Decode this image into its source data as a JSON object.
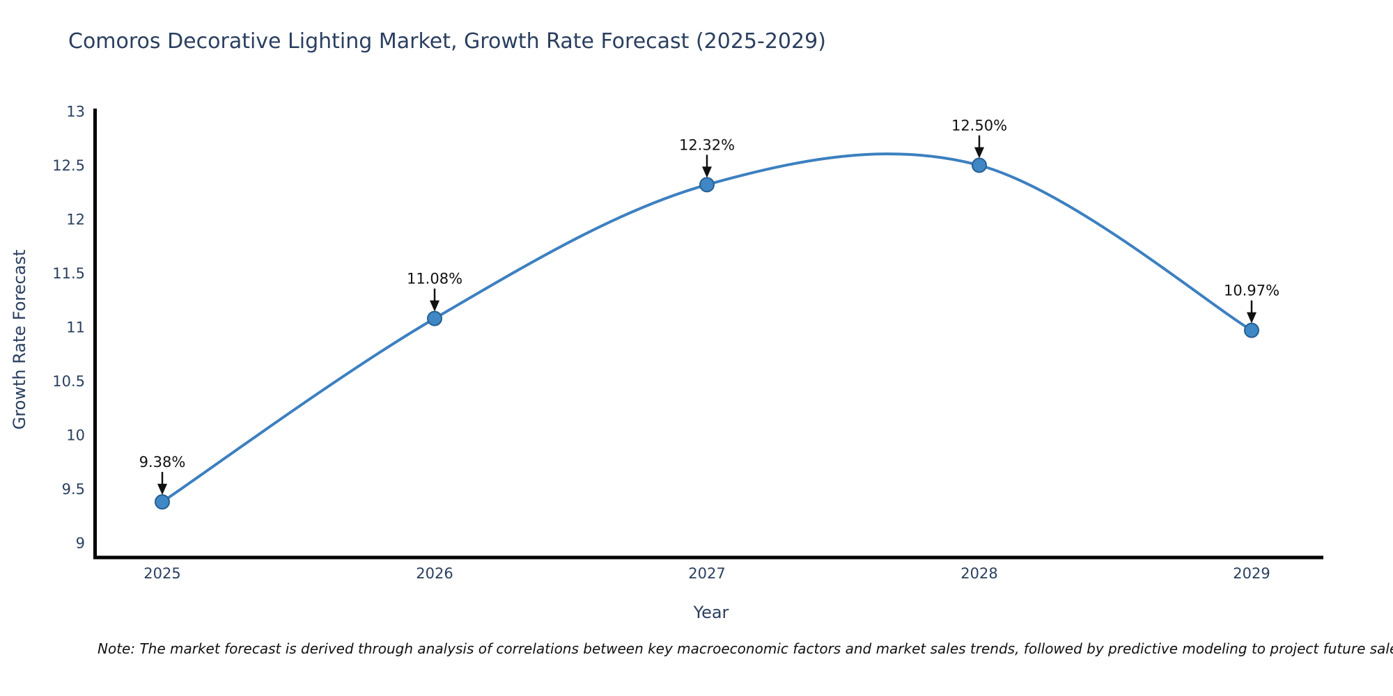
{
  "title": "Comoros Decorative Lighting Market, Growth Rate Forecast (2025-2029)",
  "note": {
    "text": "Note: The market forecast is derived through analysis of correlations between key macroeconomic factors and market sales trends, followed by predictive modeling to project future sales."
  },
  "chart_data": {
    "type": "line",
    "title": "Comoros Decorative Lighting Market, Growth Rate Forecast (2025-2029)",
    "xlabel": "Year",
    "ylabel": "Growth Rate Forecast",
    "x": [
      2025,
      2026,
      2027,
      2028,
      2029
    ],
    "values": [
      9.38,
      11.08,
      12.32,
      12.5,
      10.97
    ],
    "point_labels": [
      "9.38%",
      "11.08%",
      "12.32%",
      "12.50%",
      "10.97%"
    ],
    "xticks": [
      "2025",
      "2026",
      "2027",
      "2028",
      "2029"
    ],
    "yticks": [
      9,
      9.5,
      10,
      10.5,
      11,
      11.5,
      12,
      12.5,
      13
    ],
    "ylim": [
      9,
      13
    ],
    "line_shape": "spline",
    "grid": false,
    "legend_position": "none",
    "annotation_arrows": "down",
    "colors": {
      "line": "#3c80c0",
      "marker_fill": "#3f87c5",
      "marker_stroke": "#265f91",
      "axis_line": "#000000",
      "tick_label": "#2a3f5f",
      "title": "#2a3f5f",
      "annotation": "#111111"
    }
  }
}
